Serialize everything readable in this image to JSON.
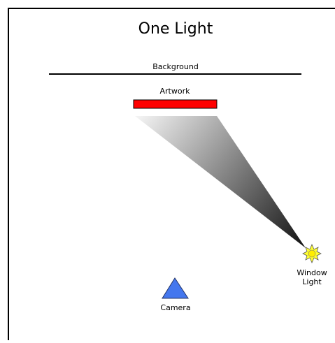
{
  "title": "One Light",
  "labels": {
    "background": "Background",
    "artwork": "Artwork",
    "light": [
      "Window",
      "Light"
    ],
    "camera": "Camera"
  }
}
